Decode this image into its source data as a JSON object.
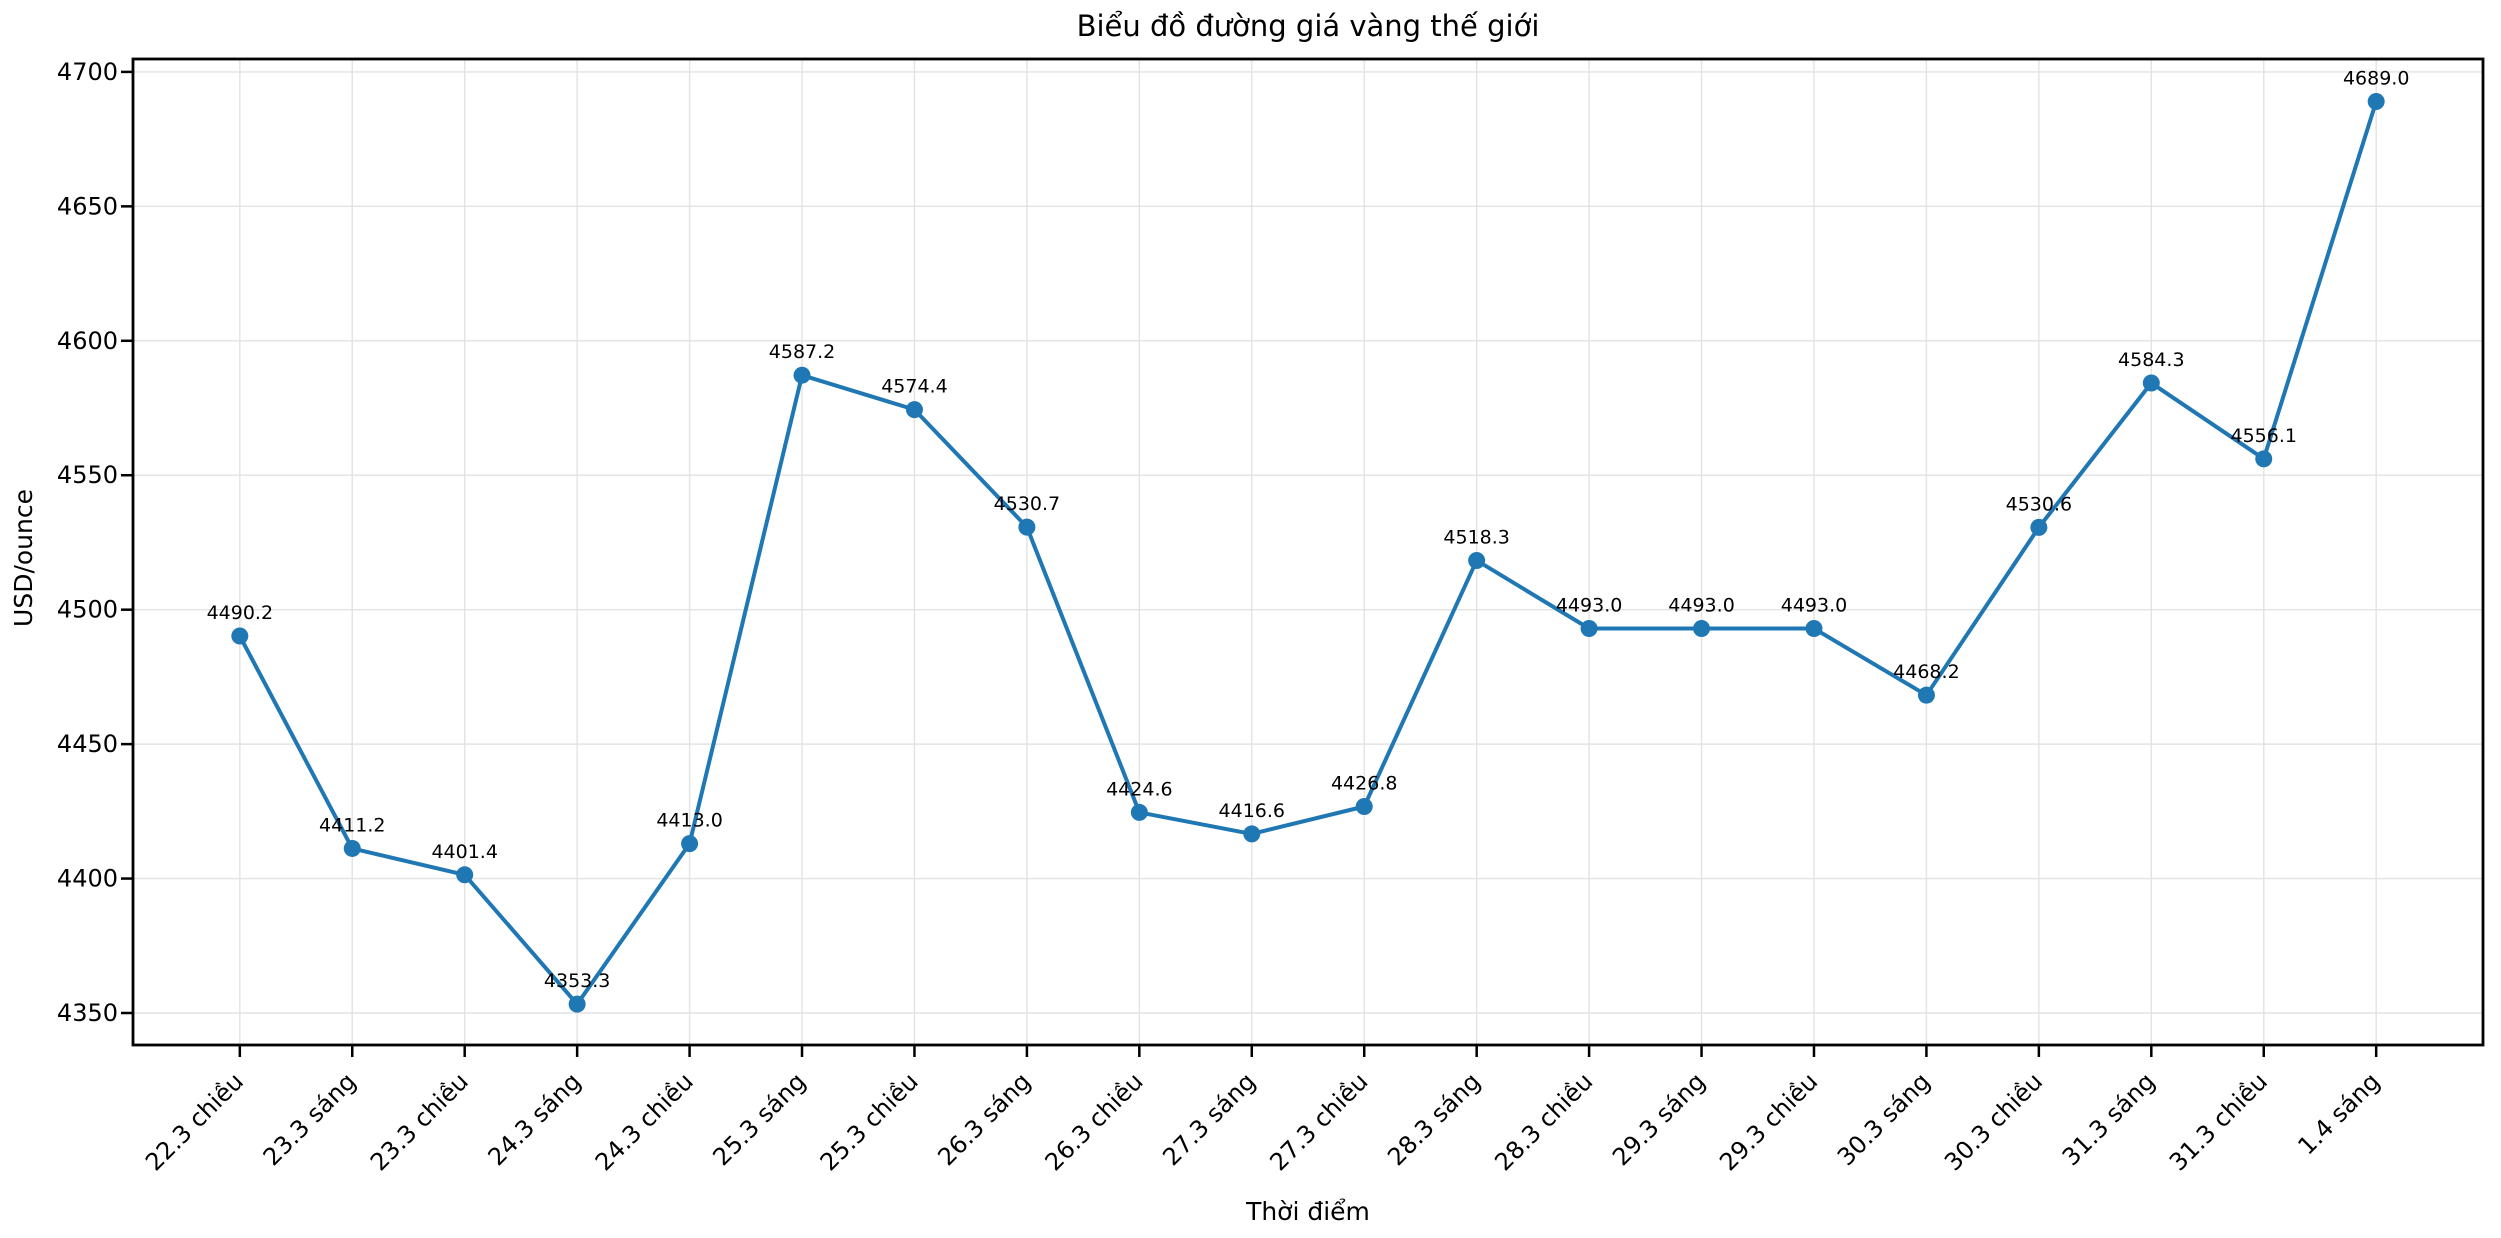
{
  "chart_data": {
    "type": "line",
    "title": "Biểu đồ đường giá vàng thế giới",
    "xlabel": "Thời điểm",
    "ylabel": "USD/ounce",
    "categories": [
      "22.3 chiều",
      "23.3 sáng",
      "23.3 chiều",
      "24.3 sáng",
      "24.3 chiều",
      "25.3 sáng",
      "25.3 chiều",
      "26.3 sáng",
      "26.3 chiều",
      "27.3 sáng",
      "27.3 chiều",
      "28.3 sáng",
      "28.3 chiều",
      "29.3 sáng",
      "29.3 chiều",
      "30.3 sáng",
      "30.3 chiều",
      "31.3 sáng",
      "31.3 chiều",
      "1.4 sáng"
    ],
    "values": [
      4490.2,
      4411.2,
      4401.4,
      4353.3,
      4413.0,
      4587.2,
      4574.4,
      4530.7,
      4424.6,
      4416.6,
      4426.8,
      4518.3,
      4493.0,
      4493.0,
      4493.0,
      4468.2,
      4530.6,
      4584.3,
      4556.1,
      4689.0
    ],
    "point_labels": [
      "4490.2",
      "4411.2",
      "4401.4",
      "4353.3",
      "4413.0",
      "4587.2",
      "4574.4",
      "4530.7",
      "4424.6",
      "4416.6",
      "4426.8",
      "4518.3",
      "4493.0",
      "4493.0",
      "4493.0",
      "4468.2",
      "4530.6",
      "4584.3",
      "4556.1",
      "4689.0"
    ],
    "yticks": [
      4350,
      4400,
      4450,
      4500,
      4550,
      4600,
      4650,
      4700
    ],
    "ylim": [
      4338.1,
      4704.8
    ],
    "xlim": [
      -0.95,
      19.95
    ],
    "grid": true,
    "legend": false,
    "line_color": "#1f77b4",
    "marker_color": "#1f77b4",
    "grid_color": "#e3e3e3",
    "spine_color": "#000000",
    "text_color": "#000000"
  }
}
